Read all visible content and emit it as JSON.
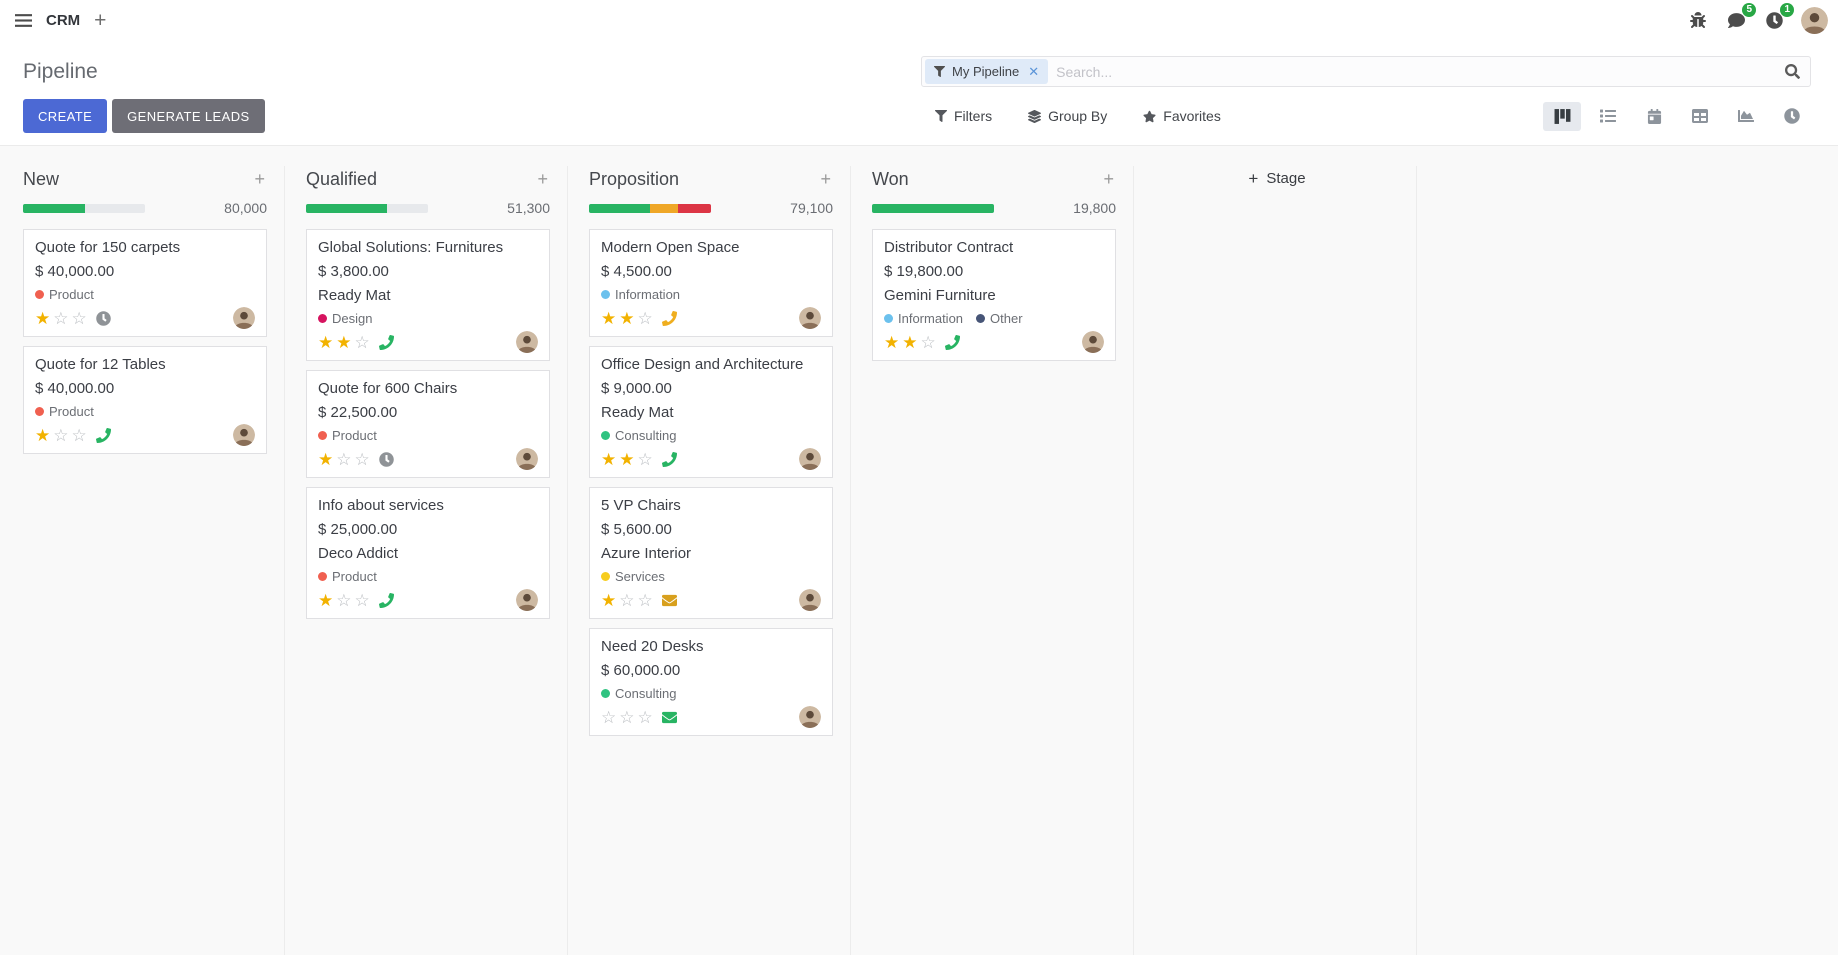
{
  "navbar": {
    "app_name": "CRM",
    "systray": {
      "messages_badge": "5",
      "activities_badge": "1"
    }
  },
  "control_panel": {
    "title": "Pipeline",
    "buttons": {
      "create": "CREATE",
      "generate_leads": "GENERATE LEADS"
    },
    "search": {
      "facet": "My Pipeline",
      "placeholder": "Search..."
    },
    "menus": {
      "filters": "Filters",
      "group_by": "Group By",
      "favorites": "Favorites"
    },
    "view_switcher": [
      "kanban",
      "list",
      "calendar",
      "pivot",
      "graph",
      "activity"
    ],
    "active_view": "kanban"
  },
  "colors": {
    "primary_button": "#4c69d4",
    "secondary_button": "#6e6e76",
    "progress_green": "#28b463",
    "progress_yellow": "#efa727",
    "progress_red": "#dc3545",
    "badge_green": "#28a745",
    "star_gold": "#f2b200"
  },
  "kanban": {
    "add_stage_label": "Stage",
    "columns": [
      {
        "name": "New",
        "counter": "80,000",
        "progress": [
          {
            "color": "#28b463",
            "pct": 51
          }
        ],
        "cards": [
          {
            "title": "Quote for 150 carpets",
            "amount": "$ 40,000.00",
            "tags": [
              {
                "name": "Product",
                "color": "#f06050"
              }
            ],
            "stars": 1,
            "activity": {
              "icon": "clock",
              "color": "#8f9397"
            }
          },
          {
            "title": "Quote for 12 Tables",
            "amount": "$ 40,000.00",
            "tags": [
              {
                "name": "Product",
                "color": "#f06050"
              }
            ],
            "stars": 1,
            "activity": {
              "icon": "phone",
              "color": "#28b463"
            }
          }
        ]
      },
      {
        "name": "Qualified",
        "counter": "51,300",
        "progress": [
          {
            "color": "#28b463",
            "pct": 66
          }
        ],
        "cards": [
          {
            "title": "Global Solutions: Furnitures",
            "amount": "$ 3,800.00",
            "partner": "Ready Mat",
            "tags": [
              {
                "name": "Design",
                "color": "#d6145f"
              }
            ],
            "stars": 2,
            "activity": {
              "icon": "phone",
              "color": "#28b463"
            }
          },
          {
            "title": "Quote for 600 Chairs",
            "amount": "$ 22,500.00",
            "tags": [
              {
                "name": "Product",
                "color": "#f06050"
              }
            ],
            "stars": 1,
            "activity": {
              "icon": "clock",
              "color": "#8f9397"
            }
          },
          {
            "title": "Info about services",
            "amount": "$ 25,000.00",
            "partner": "Deco Addict",
            "tags": [
              {
                "name": "Product",
                "color": "#f06050"
              }
            ],
            "stars": 1,
            "activity": {
              "icon": "phone",
              "color": "#28b463"
            }
          }
        ]
      },
      {
        "name": "Proposition",
        "counter": "79,100",
        "progress": [
          {
            "color": "#28b463",
            "pct": 50
          },
          {
            "color": "#efa727",
            "pct": 23
          },
          {
            "color": "#dc3545",
            "pct": 27
          }
        ],
        "cards": [
          {
            "title": "Modern Open Space",
            "amount": "$ 4,500.00",
            "tags": [
              {
                "name": "Information",
                "color": "#6cc1ed"
              }
            ],
            "stars": 2,
            "activity": {
              "icon": "phone",
              "color": "#efae1f"
            }
          },
          {
            "title": "Office Design and Architecture",
            "amount": "$ 9,000.00",
            "partner": "Ready Mat",
            "tags": [
              {
                "name": "Consulting",
                "color": "#30c381"
              }
            ],
            "stars": 2,
            "activity": {
              "icon": "phone",
              "color": "#28b463"
            }
          },
          {
            "title": "5 VP Chairs",
            "amount": "$ 5,600.00",
            "partner": "Azure Interior",
            "tags": [
              {
                "name": "Services",
                "color": "#f7cd1f"
              }
            ],
            "stars": 1,
            "activity": {
              "icon": "envelope",
              "color": "#d8a01d"
            }
          },
          {
            "title": "Need 20 Desks",
            "amount": "$ 60,000.00",
            "tags": [
              {
                "name": "Consulting",
                "color": "#30c381"
              }
            ],
            "stars": 0,
            "activity": {
              "icon": "envelope",
              "color": "#28b463"
            }
          }
        ]
      },
      {
        "name": "Won",
        "counter": "19,800",
        "progress": [
          {
            "color": "#28b463",
            "pct": 100
          }
        ],
        "cards": [
          {
            "title": "Distributor Contract",
            "amount": "$ 19,800.00",
            "partner": "Gemini Furniture",
            "tags": [
              {
                "name": "Information",
                "color": "#6cc1ed"
              },
              {
                "name": "Other",
                "color": "#475577"
              }
            ],
            "stars": 2,
            "activity": {
              "icon": "phone",
              "color": "#28b463"
            }
          }
        ]
      }
    ]
  }
}
